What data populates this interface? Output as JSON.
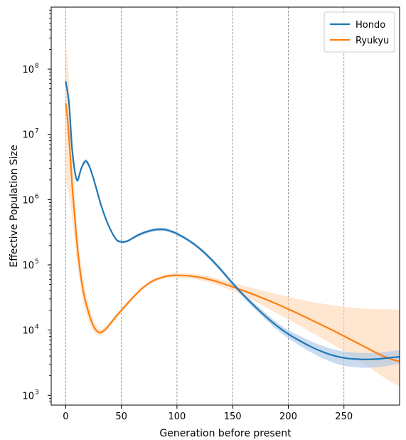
{
  "chart_data": {
    "type": "line",
    "xlabel": "Generation before present",
    "ylabel": "Effective Population Size",
    "xlim": [
      -13,
      300
    ],
    "ylim_log10": [
      2.85,
      8.95
    ],
    "yscale": "log",
    "x_ticks": [
      0,
      50,
      100,
      150,
      200,
      250
    ],
    "x_tick_labels": [
      "0",
      "50",
      "100",
      "150",
      "200",
      "250"
    ],
    "y_ticks_log10": [
      3,
      4,
      5,
      6,
      7,
      8
    ],
    "y_tick_labels": [
      "10",
      "10",
      "10",
      "10",
      "10",
      "10"
    ],
    "y_tick_exponents": [
      "3",
      "4",
      "5",
      "6",
      "7",
      "8"
    ],
    "grid": "vertical dashed lines at x ticks",
    "legend_position": "top-right",
    "series": [
      {
        "name": "Hondo",
        "color": "#1f77b4",
        "band_color": "#aec7e8",
        "x": [
          0,
          3,
          6,
          10,
          14,
          18,
          22,
          27,
          32,
          38,
          45,
          50,
          55,
          60,
          65,
          70,
          75,
          80,
          85,
          90,
          95,
          100,
          110,
          120,
          130,
          140,
          150,
          160,
          170,
          180,
          190,
          200,
          210,
          220,
          230,
          240,
          250,
          260,
          270,
          280,
          290,
          300
        ],
        "y": [
          65000000,
          30000000,
          5500000,
          2000000,
          3000000,
          3900000,
          3000000,
          1600000,
          800000,
          420000,
          250000,
          225000,
          230000,
          255000,
          285000,
          310000,
          330000,
          345000,
          350000,
          345000,
          325000,
          300000,
          240000,
          180000,
          125000,
          82000,
          52000,
          34000,
          23000,
          16000,
          11500,
          8700,
          6900,
          5600,
          4700,
          4100,
          3750,
          3600,
          3550,
          3600,
          3750,
          3900
        ],
        "lower": [
          58000000,
          26000000,
          5000000,
          1850000,
          2800000,
          3600000,
          2800000,
          1500000,
          750000,
          400000,
          238000,
          215000,
          220000,
          243000,
          270000,
          293000,
          311000,
          325000,
          330000,
          325000,
          307000,
          283000,
          226000,
          169000,
          117000,
          76500,
          48000,
          31000,
          20800,
          14300,
          10100,
          7500,
          5800,
          4600,
          3750,
          3200,
          2850,
          2700,
          2650,
          2700,
          2850,
          3050
        ],
        "upper": [
          72000000,
          34000000,
          6000000,
          2150000,
          3200000,
          4200000,
          3200000,
          1700000,
          850000,
          440000,
          262000,
          236000,
          240000,
          267000,
          300000,
          327000,
          349000,
          365000,
          371000,
          366000,
          344000,
          318000,
          255000,
          192000,
          134000,
          88000,
          56000,
          37000,
          25500,
          18000,
          13000,
          10000,
          8200,
          6800,
          5800,
          5100,
          4700,
          4500,
          4450,
          4500,
          4700,
          4900
        ]
      },
      {
        "name": "Ryukyu",
        "color": "#ff7f0e",
        "band_color": "#ffd9b8",
        "x": [
          0,
          2,
          4,
          6,
          8,
          10,
          13,
          16,
          20,
          25,
          30,
          35,
          40,
          45,
          50,
          55,
          60,
          65,
          70,
          75,
          80,
          85,
          90,
          95,
          100,
          110,
          120,
          130,
          140,
          150,
          160,
          170,
          180,
          190,
          200,
          210,
          220,
          230,
          240,
          250,
          260,
          270,
          280,
          290,
          300
        ],
        "y": [
          30000000,
          15000000,
          5000000,
          1500000,
          600000,
          230000,
          80000,
          38000,
          20000,
          11500,
          9200,
          10000,
          12500,
          16000,
          20000,
          25000,
          31000,
          38000,
          45500,
          52500,
          58500,
          63000,
          66500,
          68500,
          69000,
          68000,
          64500,
          59000,
          52500,
          46000,
          40000,
          34500,
          29500,
          25000,
          21000,
          17500,
          14500,
          12000,
          9900,
          8100,
          6600,
          5400,
          4400,
          3700,
          3300
        ],
        "lower": [
          2000000,
          1500000,
          900000,
          500000,
          250000,
          120000,
          50000,
          26000,
          15000,
          9500,
          8200,
          9000,
          11500,
          14800,
          18600,
          23400,
          29200,
          35800,
          43000,
          49600,
          55200,
          59400,
          62500,
          64000,
          64000,
          62500,
          58500,
          53000,
          46500,
          40000,
          33500,
          27500,
          22300,
          18000,
          14500,
          11700,
          9400,
          7500,
          6000,
          4700,
          3700,
          2900,
          2200,
          1700,
          1350
        ],
        "upper": [
          260000000,
          120000000,
          30000000,
          5000000,
          1400000,
          450000,
          130000,
          56000,
          28000,
          14000,
          10300,
          11100,
          13600,
          17300,
          21500,
          26700,
          33000,
          40400,
          48200,
          55700,
          62100,
          67000,
          71000,
          73500,
          74500,
          74000,
          71000,
          65800,
          59200,
          52900,
          47800,
          43300,
          39200,
          35600,
          32400,
          29600,
          27300,
          25500,
          24000,
          22800,
          21900,
          21300,
          21000,
          20800,
          20600
        ]
      }
    ]
  }
}
